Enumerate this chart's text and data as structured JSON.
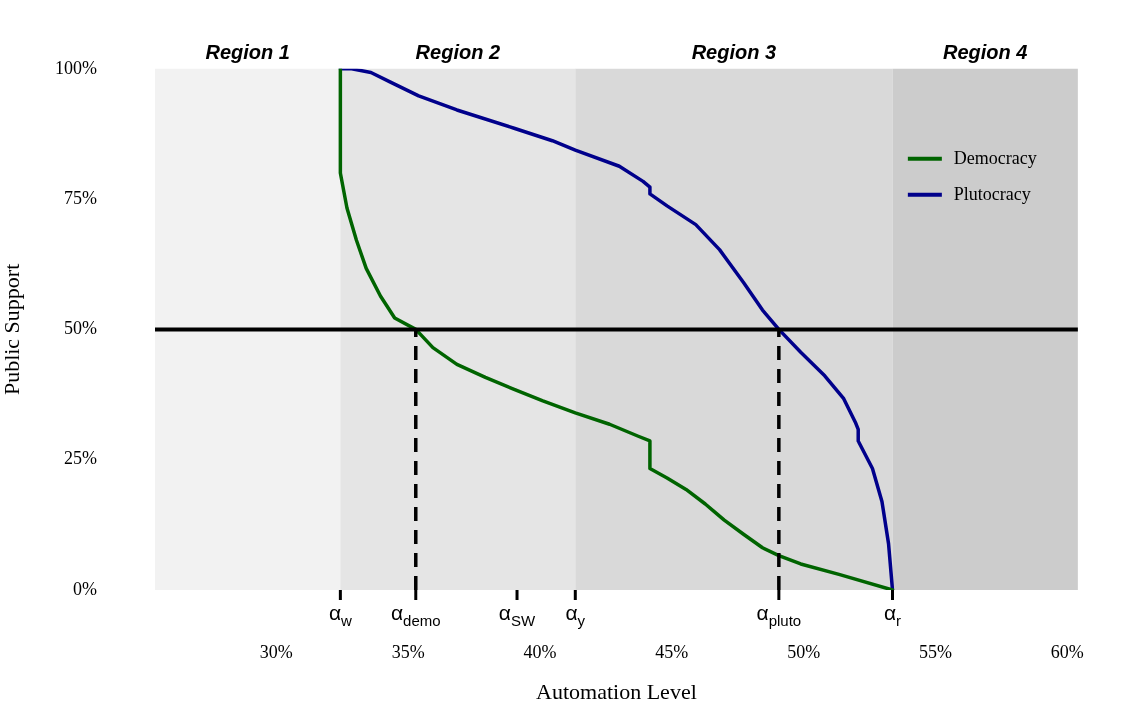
{
  "chart_data": {
    "type": "line",
    "xlabel": "Automation Level",
    "ylabel": "Public Support",
    "xlim": [
      25.4,
      60.4
    ],
    "ylim": [
      0,
      100
    ],
    "xticks": [
      {
        "value": 30,
        "label": "30%"
      },
      {
        "value": 35,
        "label": "35%"
      },
      {
        "value": 40,
        "label": "40%"
      },
      {
        "value": 45,
        "label": "45%"
      },
      {
        "value": 50,
        "label": "50%"
      },
      {
        "value": 55,
        "label": "55%"
      },
      {
        "value": 60,
        "label": "60%"
      }
    ],
    "yticks": [
      {
        "value": 0,
        "label": "0%"
      },
      {
        "value": 25,
        "label": "25%"
      },
      {
        "value": 50,
        "label": "50%"
      },
      {
        "value": 75,
        "label": "75%"
      },
      {
        "value": 100,
        "label": "100%"
      }
    ],
    "annotations": [
      {
        "text": "α$_{w}$",
        "x": 32.43,
        "y": 0
      },
      {
        "text": "α$_{demo}$",
        "x": 35.29,
        "y": 0
      },
      {
        "text": "α$_{SW}$",
        "x": 39.13,
        "y": 0
      },
      {
        "text": "α$_{y}$",
        "x": 41.34,
        "y": 0
      },
      {
        "text": "α$_{pluto}$",
        "x": 49.06,
        "y": 0
      },
      {
        "text": "α$_{r}$",
        "x": 53.37,
        "y": 0
      }
    ],
    "bands": [
      {
        "axis": "x",
        "from": 25.4,
        "to": 32.43,
        "label": "Region 1",
        "color": "#f2f2f2"
      },
      {
        "axis": "x",
        "from": 32.43,
        "to": 41.34,
        "label": "Region 2",
        "color": "#e5e5e5"
      },
      {
        "axis": "x",
        "from": 41.34,
        "to": 53.37,
        "label": "Region 3",
        "color": "#d9d9d9"
      },
      {
        "axis": "x",
        "from": 53.37,
        "to": 60.4,
        "label": "Region 4",
        "color": "#cccccc"
      }
    ],
    "ref_lines": [
      {
        "axis": "y",
        "value": 50,
        "color": "#000000",
        "line_style": "solid"
      },
      {
        "axis": "x",
        "value": 35.29,
        "color": "#000000",
        "line_style": "dashed"
      },
      {
        "axis": "x",
        "value": 49.06,
        "color": "#000000",
        "line_style": "dashed"
      }
    ],
    "legend": "top right",
    "grid": false,
    "marker": "none",
    "line_style": "solid",
    "series": [
      {
        "name": "Democracy",
        "color": "#006400",
        "x": [
          32.43,
          32.43,
          32.68,
          33.04,
          33.41,
          33.95,
          34.49,
          35.29,
          35.94,
          36.85,
          37.93,
          39.02,
          40.11,
          41.34,
          42.64,
          43.73,
          44.17,
          44.17,
          44.82,
          45.54,
          46.27,
          46.99,
          47.72,
          48.44,
          49.06,
          49.89,
          51.34,
          53.37
        ],
        "values": [
          100,
          80,
          73.3,
          67.1,
          61.7,
          56.4,
          52.2,
          50,
          46.5,
          43.3,
          40.8,
          38.5,
          36.3,
          34,
          31.8,
          29.5,
          28.6,
          23.3,
          21.5,
          19.3,
          16.5,
          13.4,
          10.7,
          8.1,
          6.6,
          5,
          3,
          0
        ]
      },
      {
        "name": "Plutocracy",
        "color": "#00008b",
        "x": [
          32.43,
          32.86,
          33.59,
          34.31,
          35.4,
          36.85,
          39.02,
          40.47,
          41.34,
          43.01,
          43.91,
          44.17,
          44.17,
          44.82,
          45.91,
          46.81,
          47.72,
          48.44,
          49.06,
          49.89,
          50.8,
          51.52,
          51.96,
          52.07,
          52.07,
          52.61,
          52.97,
          53.22,
          53.37
        ],
        "values": [
          100,
          100,
          99.3,
          97.5,
          94.8,
          92.1,
          88.6,
          86.2,
          84.4,
          81.3,
          78.4,
          77.3,
          76,
          73.7,
          70.1,
          65.3,
          59,
          53.7,
          50,
          45.6,
          41.1,
          36.7,
          32.2,
          30.8,
          28.6,
          23.3,
          17,
          8.9,
          0
        ]
      }
    ]
  }
}
